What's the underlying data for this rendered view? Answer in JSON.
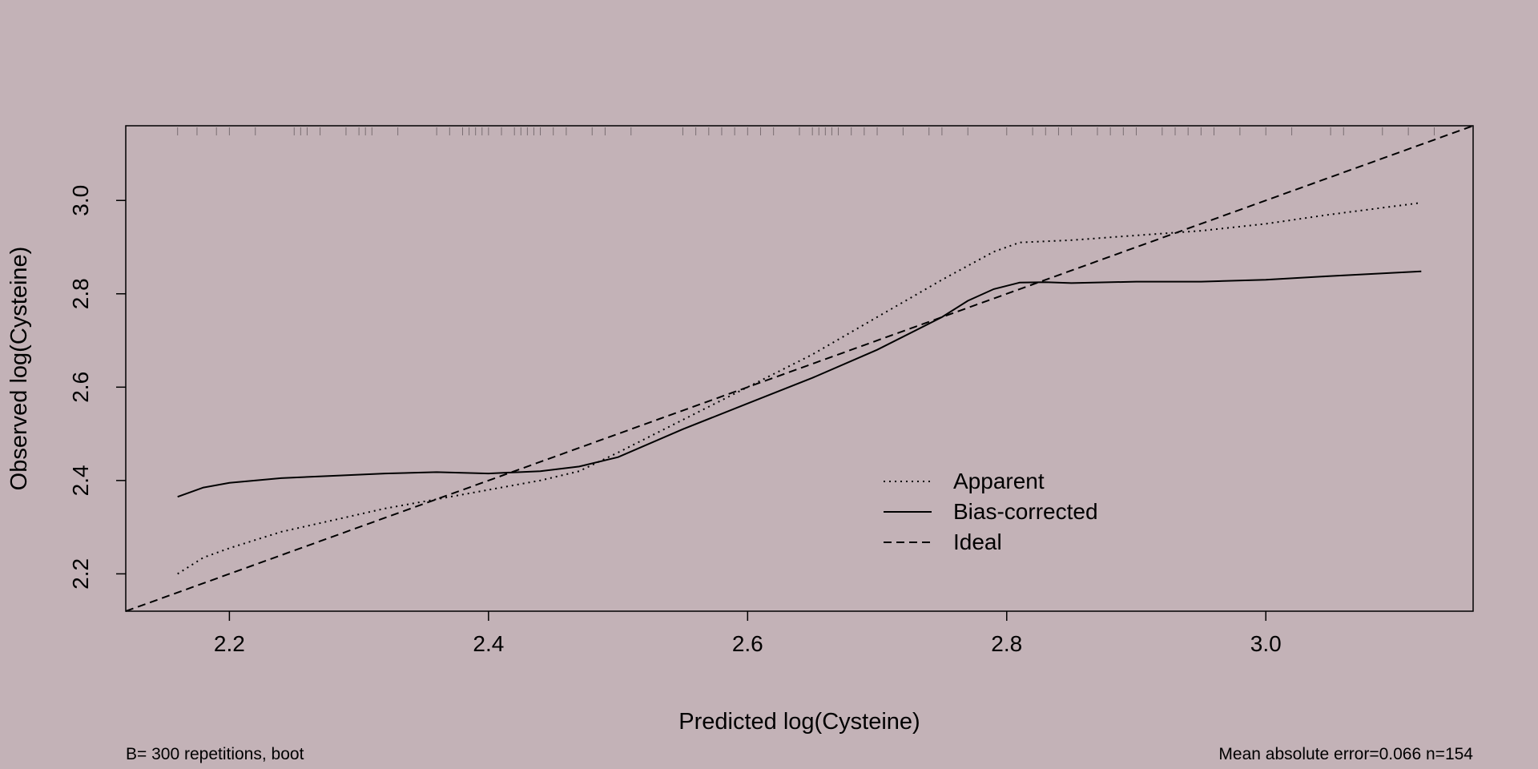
{
  "chart_data": {
    "type": "line",
    "xlabel": "Predicted log(Cysteine)",
    "ylabel": "Observed log(Cysteine)",
    "xlim": [
      2.12,
      3.16
    ],
    "ylim": [
      2.12,
      3.16
    ],
    "x_ticks": [
      2.2,
      2.4,
      2.6,
      2.8,
      3.0
    ],
    "x_tick_labels": [
      "2.2",
      "2.4",
      "2.6",
      "2.8",
      "3.0"
    ],
    "y_ticks": [
      2.2,
      2.4,
      2.6,
      2.8,
      3.0
    ],
    "y_tick_labels": [
      "2.2",
      "2.4",
      "2.6",
      "2.8",
      "3.0"
    ],
    "grid": false,
    "legend_position": "bottom-right",
    "series": [
      {
        "name": "Apparent",
        "style": "dotted",
        "x": [
          2.16,
          2.18,
          2.2,
          2.24,
          2.28,
          2.32,
          2.36,
          2.4,
          2.44,
          2.47,
          2.5,
          2.55,
          2.6,
          2.65,
          2.7,
          2.75,
          2.79,
          2.81,
          2.85,
          2.9,
          2.95,
          3.0,
          3.05,
          3.12
        ],
        "y": [
          2.2,
          2.235,
          2.255,
          2.29,
          2.315,
          2.34,
          2.36,
          2.38,
          2.4,
          2.42,
          2.46,
          2.53,
          2.6,
          2.67,
          2.75,
          2.83,
          2.89,
          2.91,
          2.915,
          2.925,
          2.935,
          2.95,
          2.97,
          2.995
        ]
      },
      {
        "name": "Bias-corrected",
        "style": "solid",
        "x": [
          2.16,
          2.18,
          2.2,
          2.24,
          2.28,
          2.32,
          2.36,
          2.4,
          2.44,
          2.47,
          2.5,
          2.55,
          2.6,
          2.65,
          2.7,
          2.75,
          2.77,
          2.79,
          2.81,
          2.83,
          2.85,
          2.9,
          2.95,
          3.0,
          3.05,
          3.12
        ],
        "y": [
          2.365,
          2.385,
          2.395,
          2.405,
          2.41,
          2.415,
          2.418,
          2.415,
          2.42,
          2.43,
          2.45,
          2.51,
          2.565,
          2.62,
          2.68,
          2.75,
          2.785,
          2.81,
          2.824,
          2.825,
          2.823,
          2.826,
          2.826,
          2.83,
          2.838,
          2.848
        ]
      },
      {
        "name": "Ideal",
        "style": "dashed",
        "x": [
          2.12,
          3.16
        ],
        "y": [
          2.12,
          3.16
        ]
      }
    ],
    "rug_x": [
      2.16,
      2.175,
      2.19,
      2.2,
      2.22,
      2.25,
      2.255,
      2.26,
      2.27,
      2.29,
      2.3,
      2.305,
      2.31,
      2.33,
      2.36,
      2.37,
      2.38,
      2.385,
      2.39,
      2.395,
      2.4,
      2.41,
      2.42,
      2.425,
      2.43,
      2.435,
      2.44,
      2.45,
      2.46,
      2.48,
      2.49,
      2.51,
      2.55,
      2.56,
      2.57,
      2.58,
      2.59,
      2.6,
      2.61,
      2.62,
      2.64,
      2.65,
      2.655,
      2.66,
      2.665,
      2.67,
      2.68,
      2.69,
      2.7,
      2.72,
      2.74,
      2.75,
      2.77,
      2.8,
      2.82,
      2.83,
      2.84,
      2.85,
      2.87,
      2.88,
      2.89,
      2.9,
      2.92,
      2.93,
      2.94,
      2.95,
      2.96,
      2.98,
      3.0,
      3.02,
      3.05,
      3.06,
      3.09,
      3.11,
      3.13
    ],
    "footer_left": "B= 300 repetitions, boot",
    "footer_right": "Mean absolute error=0.066 n=154"
  }
}
